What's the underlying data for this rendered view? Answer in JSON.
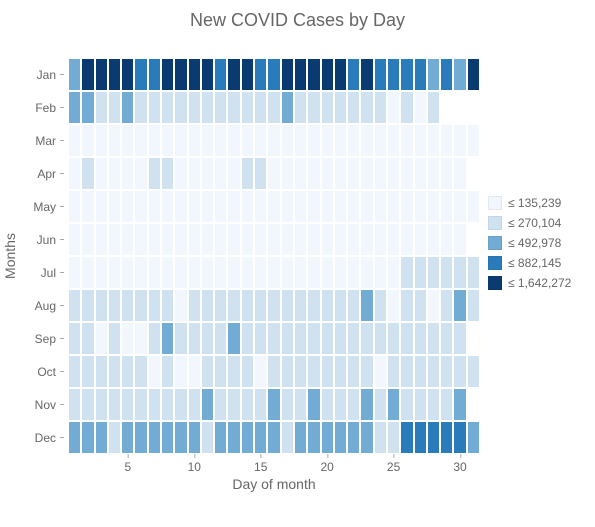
{
  "title": "New COVID Cases by Day",
  "x_label": "Day of month",
  "y_label": "Months",
  "title_fontsize": 18,
  "axis_label_fontsize": 14,
  "tick_fontsize": 12,
  "legend_fontsize": 12,
  "text_color": "#666666",
  "background_color": "#ffffff",
  "cell_border_color": "#ffffff",
  "n_days": 31,
  "months": [
    "Jan",
    "Feb",
    "Mar",
    "Apr",
    "May",
    "Jun",
    "Jul",
    "Aug",
    "Sep",
    "Oct",
    "Nov",
    "Dec"
  ],
  "x_ticks": [
    5,
    10,
    15,
    20,
    25,
    30
  ],
  "color_scale": {
    "0": "#f1f7fd",
    "1": "#d0e1f0",
    "2": "#72abd4",
    "3": "#2a7bba",
    "4": "#0a3b70"
  },
  "legend": [
    {
      "label": "≤ 135,239",
      "level": 0
    },
    {
      "label": "≤ 270,104",
      "level": 1
    },
    {
      "label": "≤ 492,978",
      "level": 2
    },
    {
      "label": "≤ 882,145",
      "level": 3
    },
    {
      "label": "≤ 1,642,272",
      "level": 4
    }
  ],
  "grid": [
    [
      2,
      4,
      4,
      4,
      4,
      3,
      3,
      4,
      4,
      4,
      4,
      3,
      4,
      4,
      3,
      3,
      4,
      4,
      4,
      4,
      4,
      3,
      4,
      3,
      3,
      3,
      3,
      2,
      3,
      2,
      4
    ],
    [
      2,
      2,
      1,
      1,
      2,
      1,
      1,
      1,
      1,
      1,
      1,
      1,
      1,
      1,
      1,
      1,
      2,
      1,
      1,
      1,
      1,
      1,
      1,
      1,
      0,
      1,
      0,
      1,
      -1,
      -1,
      -1
    ],
    [
      0,
      0,
      0,
      0,
      0,
      0,
      0,
      0,
      0,
      0,
      0,
      0,
      0,
      0,
      0,
      0,
      0,
      0,
      0,
      0,
      0,
      0,
      0,
      0,
      0,
      0,
      0,
      0,
      0,
      0,
      0
    ],
    [
      0,
      1,
      0,
      0,
      0,
      0,
      1,
      1,
      0,
      0,
      0,
      0,
      0,
      1,
      1,
      0,
      0,
      0,
      0,
      0,
      0,
      0,
      0,
      0,
      0,
      0,
      0,
      0,
      0,
      0,
      -1
    ],
    [
      0,
      0,
      0,
      0,
      0,
      0,
      0,
      0,
      0,
      0,
      0,
      0,
      0,
      0,
      0,
      0,
      0,
      0,
      0,
      0,
      0,
      0,
      0,
      0,
      0,
      0,
      0,
      0,
      0,
      0,
      0
    ],
    [
      0,
      0,
      0,
      0,
      0,
      0,
      0,
      0,
      0,
      0,
      0,
      0,
      0,
      0,
      0,
      0,
      0,
      0,
      0,
      0,
      0,
      0,
      0,
      0,
      0,
      0,
      0,
      0,
      0,
      0,
      -1
    ],
    [
      0,
      0,
      0,
      0,
      0,
      0,
      0,
      0,
      0,
      0,
      0,
      0,
      0,
      0,
      0,
      0,
      0,
      0,
      0,
      0,
      0,
      0,
      0,
      0,
      0,
      1,
      1,
      1,
      1,
      1,
      1
    ],
    [
      1,
      1,
      1,
      1,
      1,
      1,
      1,
      1,
      0,
      1,
      1,
      1,
      1,
      1,
      1,
      1,
      1,
      1,
      1,
      1,
      1,
      1,
      2,
      1,
      0,
      1,
      1,
      0,
      1,
      2,
      1
    ],
    [
      1,
      1,
      0,
      1,
      0,
      0,
      1,
      2,
      1,
      1,
      1,
      1,
      2,
      1,
      1,
      1,
      1,
      1,
      1,
      1,
      1,
      1,
      1,
      1,
      1,
      1,
      1,
      1,
      1,
      1,
      -1
    ],
    [
      1,
      1,
      1,
      1,
      1,
      1,
      0,
      1,
      0,
      0,
      1,
      1,
      1,
      1,
      0,
      1,
      1,
      1,
      1,
      1,
      1,
      1,
      1,
      0,
      1,
      1,
      1,
      1,
      1,
      1,
      1
    ],
    [
      1,
      1,
      1,
      1,
      1,
      1,
      1,
      1,
      1,
      1,
      2,
      1,
      1,
      1,
      1,
      2,
      1,
      1,
      2,
      1,
      1,
      1,
      2,
      1,
      2,
      1,
      1,
      1,
      1,
      2,
      -1
    ],
    [
      2,
      2,
      2,
      1,
      2,
      2,
      2,
      2,
      2,
      2,
      1,
      2,
      2,
      2,
      2,
      2,
      1,
      2,
      2,
      2,
      2,
      2,
      2,
      1,
      1,
      3,
      3,
      3,
      3,
      3,
      2
    ]
  ]
}
